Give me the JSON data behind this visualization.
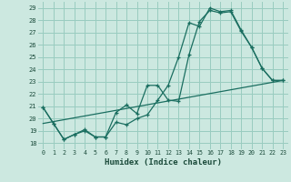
{
  "xlabel": "Humidex (Indice chaleur)",
  "bg_color": "#cce8e0",
  "grid_color": "#99ccc0",
  "line_color": "#1a6e60",
  "xlim": [
    -0.5,
    23.5
  ],
  "ylim": [
    17.5,
    29.5
  ],
  "xticks": [
    0,
    1,
    2,
    3,
    4,
    5,
    6,
    7,
    8,
    9,
    10,
    11,
    12,
    13,
    14,
    15,
    16,
    17,
    18,
    19,
    20,
    21,
    22,
    23
  ],
  "yticks": [
    18,
    19,
    20,
    21,
    22,
    23,
    24,
    25,
    26,
    27,
    28,
    29
  ],
  "line1_x": [
    0,
    1,
    2,
    3,
    4,
    5,
    6,
    7,
    8,
    9,
    10,
    11,
    12,
    13,
    14,
    15,
    16,
    17,
    18,
    19,
    20,
    21,
    22,
    23
  ],
  "line1_y": [
    20.9,
    19.6,
    18.3,
    18.7,
    19.0,
    18.5,
    18.5,
    19.7,
    19.5,
    20.0,
    20.3,
    21.5,
    22.7,
    25.0,
    27.8,
    27.5,
    29.0,
    28.7,
    28.8,
    27.2,
    25.8,
    24.1,
    23.1,
    23.1
  ],
  "line2_x": [
    0,
    1,
    2,
    3,
    4,
    5,
    6,
    7,
    8,
    9,
    10,
    11,
    12,
    13,
    14,
    15,
    16,
    17,
    18,
    19,
    20,
    21,
    22,
    23
  ],
  "line2_y": [
    20.9,
    19.6,
    18.3,
    18.7,
    19.1,
    18.5,
    18.5,
    20.5,
    21.1,
    20.4,
    22.7,
    22.7,
    21.5,
    21.4,
    25.2,
    27.9,
    28.8,
    28.6,
    28.7,
    27.1,
    25.8,
    24.1,
    23.1,
    23.1
  ],
  "line3_x": [
    0,
    23
  ],
  "line3_y": [
    19.6,
    23.1
  ]
}
